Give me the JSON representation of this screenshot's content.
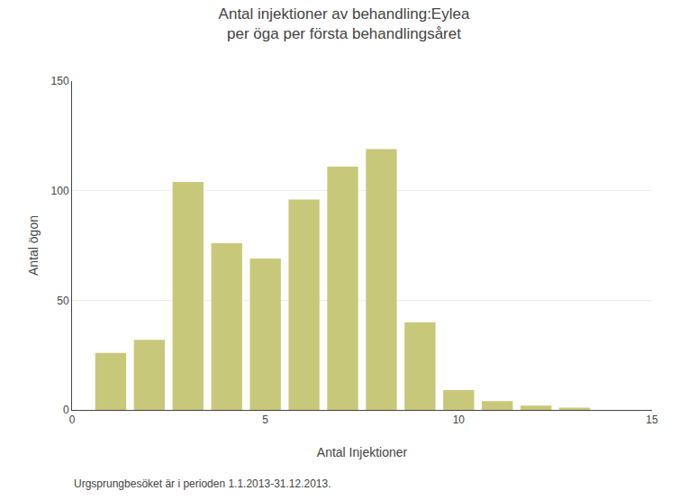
{
  "chart_data": {
    "type": "bar",
    "title": "Antal injektioner av behandling:Eylea\nper öga per första behandlingsåret",
    "xlabel": "Antal Injektioner",
    "ylabel": "Antal ögon",
    "x": [
      1,
      2,
      3,
      4,
      5,
      6,
      7,
      8,
      9,
      10,
      11,
      12,
      13
    ],
    "values": [
      26,
      32,
      104,
      76,
      69,
      96,
      111,
      119,
      40,
      9,
      4,
      2,
      1
    ],
    "color": "#c8c87a",
    "xlim": [
      0,
      15
    ],
    "xticks": [
      0,
      5,
      10,
      15
    ],
    "ylim": [
      0,
      150
    ],
    "yticks": [
      0,
      50,
      100,
      150
    ],
    "grid": true,
    "footnote": "Urgsprungbesöket är i perioden 1.1.2013-31.12.2013."
  }
}
